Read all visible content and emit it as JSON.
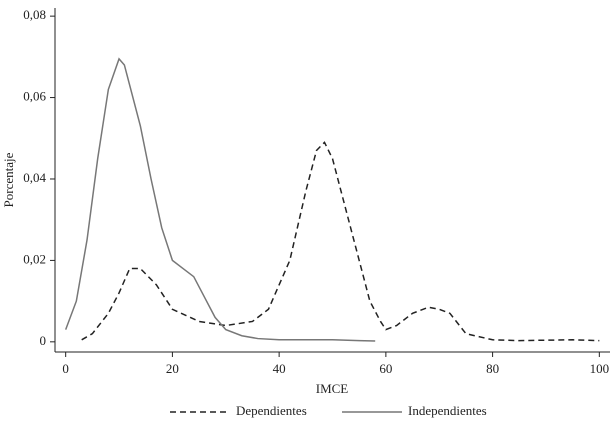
{
  "chart_data": {
    "type": "line",
    "xlabel": "IMCE",
    "ylabel": "Porcentaje",
    "xlim": [
      -2,
      102
    ],
    "xticks": [
      0,
      20,
      40,
      60,
      80,
      100
    ],
    "ylim": [
      -0.0025,
      0.082
    ],
    "yticks": [
      0,
      {
        "value": 0.02,
        "label": "0,02"
      },
      {
        "value": 0.04,
        "label": "0,04"
      },
      {
        "value": 0.06,
        "label": "0,06"
      },
      {
        "value": 0.08,
        "label": "0,08"
      }
    ],
    "legend": "bottom",
    "series": [
      {
        "name": "Dependientes",
        "color": "#222222",
        "style": "dashed",
        "x": [
          3,
          5,
          8,
          10,
          12,
          14,
          17,
          20,
          25,
          30,
          35,
          38,
          42,
          45,
          47,
          48.5,
          50,
          53,
          55,
          57,
          59,
          60,
          62,
          65,
          68,
          70,
          72,
          75,
          80,
          85,
          90,
          95,
          100
        ],
        "values": [
          0.0005,
          0.002,
          0.007,
          0.012,
          0.018,
          0.018,
          0.014,
          0.008,
          0.005,
          0.004,
          0.005,
          0.008,
          0.02,
          0.037,
          0.047,
          0.049,
          0.045,
          0.03,
          0.02,
          0.01,
          0.005,
          0.003,
          0.004,
          0.007,
          0.0085,
          0.008,
          0.007,
          0.002,
          0.0005,
          0.0003,
          0.0004,
          0.0005,
          0.0003
        ]
      },
      {
        "name": "Independientes",
        "color": "#777777",
        "style": "solid",
        "x": [
          0,
          2,
          4,
          6,
          8,
          10,
          11,
          12,
          14,
          16,
          18,
          20,
          22,
          24,
          26,
          28,
          30,
          33,
          36,
          40,
          45,
          50,
          55,
          58
        ],
        "values": [
          0.003,
          0.01,
          0.025,
          0.045,
          0.062,
          0.0695,
          0.068,
          0.063,
          0.053,
          0.04,
          0.028,
          0.02,
          0.018,
          0.016,
          0.011,
          0.006,
          0.003,
          0.0015,
          0.0008,
          0.0005,
          0.0005,
          0.0005,
          0.0003,
          0.0002
        ]
      }
    ]
  }
}
